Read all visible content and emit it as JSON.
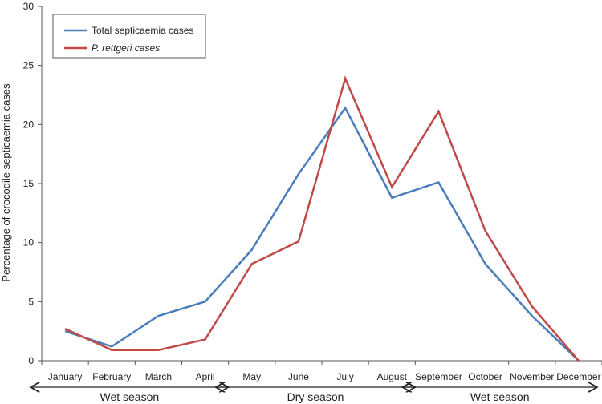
{
  "chart_data": {
    "type": "line",
    "title": "",
    "xlabel": "",
    "ylabel": "Percentage of crocodile septicaemia cases",
    "categories": [
      "January",
      "February",
      "March",
      "April",
      "May",
      "June",
      "July",
      "August",
      "September",
      "October",
      "November",
      "December"
    ],
    "ylim": [
      0,
      30
    ],
    "yticks": [
      0,
      5,
      10,
      15,
      20,
      25,
      30
    ],
    "grid": false,
    "legend_position": "top-left",
    "series": [
      {
        "name": "Total septicaemia cases",
        "color": "#4a7ebb",
        "values": [
          2.5,
          1.2,
          3.8,
          5.0,
          9.4,
          15.8,
          21.4,
          13.8,
          15.1,
          8.2,
          3.8,
          0.0
        ]
      },
      {
        "name": "P. rettgeri cases",
        "color": "#be4b48",
        "values": [
          2.7,
          0.9,
          0.9,
          1.8,
          8.2,
          10.1,
          23.9,
          14.7,
          21.1,
          11.0,
          4.6,
          0.0
        ]
      }
    ],
    "seasons": [
      {
        "label": "Wet season",
        "from": "January",
        "to": "April"
      },
      {
        "label": "Dry season",
        "from": "May",
        "to": "August"
      },
      {
        "label": "Wet season",
        "from": "September",
        "to": "December"
      }
    ]
  }
}
